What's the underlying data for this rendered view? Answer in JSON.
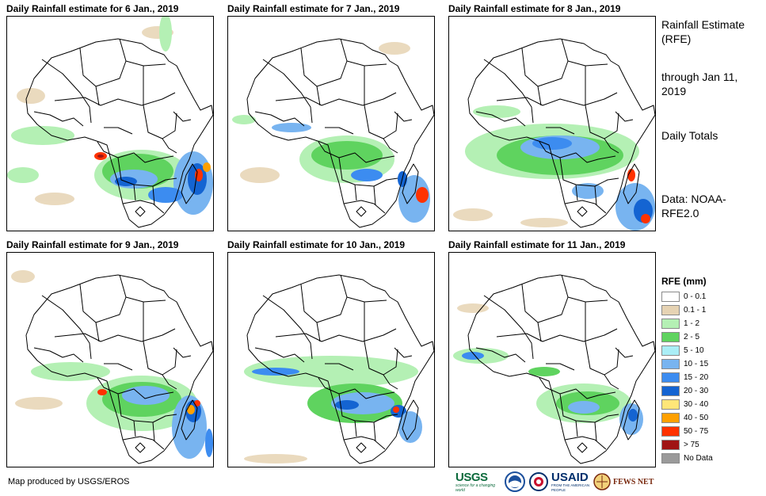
{
  "panels": [
    {
      "title": "Daily Rainfall estimate for 6 Jan., 2019"
    },
    {
      "title": "Daily Rainfall estimate for 7 Jan., 2019"
    },
    {
      "title": "Daily Rainfall estimate for 8 Jan., 2019"
    },
    {
      "title": "Daily Rainfall estimate for 9 Jan., 2019"
    },
    {
      "title": "Daily Rainfall estimate for 10 Jan., 2019"
    },
    {
      "title": "Daily Rainfall estimate for 11 Jan., 2019"
    }
  ],
  "side": {
    "heading": "Rainfall\nEstimate\n(RFE)",
    "through": "through\nJan 11, 2019",
    "totals": "Daily\nTotals",
    "source": "Data:\nNOAA-\nRFE2.0"
  },
  "legend": {
    "title": "RFE (mm)",
    "items": [
      {
        "label": "0 - 0.1",
        "color": "#ffffff"
      },
      {
        "label": "0.1 - 1",
        "color": "#e6d3b3"
      },
      {
        "label": "1 - 2",
        "color": "#b4f0b4"
      },
      {
        "label": "2 - 5",
        "color": "#5fd35f"
      },
      {
        "label": "5 - 10",
        "color": "#aaeef6"
      },
      {
        "label": "10 - 15",
        "color": "#78b4f0"
      },
      {
        "label": "15 - 20",
        "color": "#3c8cf0"
      },
      {
        "label": "20 - 30",
        "color": "#1464d2"
      },
      {
        "label": "30 - 40",
        "color": "#ffe678"
      },
      {
        "label": "40 - 50",
        "color": "#ffa000"
      },
      {
        "label": "50 - 75",
        "color": "#ff3200"
      },
      {
        "label": "> 75",
        "color": "#a01414"
      },
      {
        "label": "No Data",
        "color": "#9a9a9a"
      }
    ]
  },
  "footer": {
    "credit": "Map produced by USGS/EROS"
  },
  "logos": {
    "usgs": "USGS",
    "usgs_tag": "science for a changing world",
    "usaid": "USAID",
    "usaid_tag": "FROM THE AMERICAN PEOPLE",
    "fews": "FEWS NET"
  }
}
